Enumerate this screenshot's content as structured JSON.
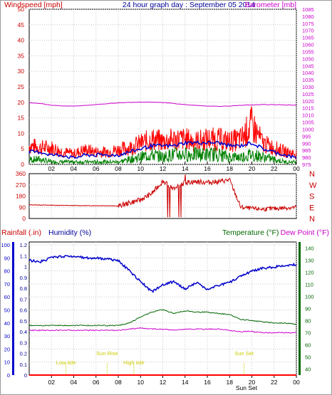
{
  "title": "24 hour graph day : September 05 2014",
  "chart_data": [
    {
      "type": "line",
      "title": "24 hour graph day : September 05 2014",
      "left_axis_label": "Windspeed [mph]",
      "right_axis_label": "Barometer [mb]",
      "x_ticks": [
        "02",
        "04",
        "06",
        "08",
        "10",
        "12",
        "14",
        "16",
        "18",
        "20",
        "22",
        "00"
      ],
      "left_range": [
        0,
        50
      ],
      "left_ticks": [
        "0",
        "5",
        "10",
        "15",
        "20",
        "25",
        "30",
        "35",
        "40",
        "45",
        "50"
      ],
      "right_range": [
        975,
        1085
      ],
      "right_ticks": [
        "975",
        "980",
        "985",
        "990",
        "995",
        "1000",
        "1005",
        "1010",
        "1015",
        "1020",
        "1025",
        "1030",
        "1035",
        "1040",
        "1045",
        "1050",
        "1055",
        "1060",
        "1065",
        "1070",
        "1075",
        "1080",
        "1085"
      ],
      "colors": {
        "gust": "#ff0000",
        "average": "#0000cc",
        "wind_green": "#008000",
        "barometer": "#cc00cc"
      },
      "grid": true,
      "series_hourly": {
        "gust_peak": [
          9,
          8,
          8,
          6,
          5,
          7,
          6,
          6,
          7,
          8,
          10,
          12,
          11,
          12,
          12,
          11,
          12,
          12,
          11,
          12,
          19,
          10,
          8,
          6,
          5
        ],
        "average": [
          4,
          4,
          3,
          3,
          2,
          3,
          3,
          3,
          3,
          4,
          5,
          6,
          6,
          6,
          7,
          7,
          7,
          7,
          6,
          6,
          7,
          5,
          4,
          3,
          2
        ],
        "green": [
          2,
          2,
          1,
          1,
          1,
          1,
          1,
          1,
          1,
          2,
          3,
          4,
          3,
          4,
          4,
          4,
          4,
          4,
          3,
          3,
          4,
          3,
          2,
          1,
          1
        ],
        "barometer": [
          1018.8,
          1018.2,
          1017.0,
          1016.4,
          1016.4,
          1016.8,
          1017.4,
          1018.1,
          1018.6,
          1019.0,
          1019.2,
          1019.2,
          1018.9,
          1018.2,
          1017.4,
          1016.8,
          1016.4,
          1016.2,
          1016.4,
          1016.8,
          1017.2,
          1017.4,
          1017.4,
          1017.2,
          1017.0
        ]
      }
    },
    {
      "type": "line",
      "right_axis_label_letters": [
        "N",
        "W",
        "S",
        "E",
        "N"
      ],
      "left_range": [
        0,
        360
      ],
      "left_ticks": [
        "0",
        "90",
        "180",
        "270",
        "360"
      ],
      "x_ticks": [
        "02",
        "04",
        "06",
        "08",
        "10",
        "12",
        "14",
        "16",
        "18",
        "20",
        "22",
        "00"
      ],
      "colors": {
        "direction": "#cc0000"
      },
      "series_hourly": {
        "direction": [
          110,
          108,
          107,
          105,
          104,
          103,
          103,
          103,
          100,
          125,
          150,
          200,
          300,
          235,
          290,
          295,
          290,
          295,
          310,
          90,
          80,
          75,
          80,
          85,
          90
        ]
      }
    },
    {
      "type": "line",
      "legend_labels": [
        "Rainfall (.in)",
        "Humidity (%)",
        "Temperature (°F)",
        "Dew Point (°F)"
      ],
      "x_ticks": [
        "02",
        "04",
        "06",
        "08",
        "10",
        "12",
        "14",
        "16",
        "18",
        "20",
        "22",
        "00"
      ],
      "bottom_labels": [
        "Sun Set"
      ],
      "humidity_ticks": [
        "0",
        "10",
        "20",
        "30",
        "40",
        "50",
        "60",
        "70",
        "80",
        "90",
        "100"
      ],
      "rain_ticks": [
        "0",
        "0.1",
        "0.2",
        "0.3",
        "0.4",
        "0.5",
        "0.6",
        "0.7",
        "0.8",
        "0.9",
        "1",
        "1.1",
        "1.2"
      ],
      "temp_ticks": [
        "40",
        "50",
        "60",
        "70",
        "80",
        "90",
        "100",
        "110",
        "120",
        "130",
        "140"
      ],
      "humidity_range": [
        0,
        100
      ],
      "rain_range": [
        0,
        1.2
      ],
      "temp_range": [
        35,
        145
      ],
      "colors": {
        "humidity": "#0000cc",
        "temperature": "#006600",
        "dewpoint": "#cc00cc",
        "rain": "#ff0000",
        "rain_axis": "#0000cc",
        "temp_axis": "#006600",
        "annotations": "#cccc00"
      },
      "annotations": [
        {
          "label": "Low tide",
          "hour": 3.3
        },
        {
          "label": "Sun Rise",
          "hour": 7.0
        },
        {
          "label": "High tide",
          "hour": 9.4
        },
        {
          "label": "Sun Set",
          "hour": 19.3
        }
      ],
      "series_hourly": {
        "humidity": [
          88,
          87,
          90,
          91,
          91,
          90,
          90,
          89,
          88,
          80,
          72,
          64,
          69,
          72,
          66,
          71,
          66,
          69,
          71,
          76,
          80,
          82,
          83,
          84,
          85
        ],
        "temperature": [
          76,
          76,
          76,
          76,
          76,
          76,
          76,
          76,
          76,
          78,
          83,
          87,
          89,
          86,
          88,
          87,
          87,
          86,
          85,
          81,
          80,
          79,
          78,
          78,
          77
        ],
        "dewpoint": [
          72,
          72,
          72,
          72,
          72,
          72,
          72,
          72,
          72,
          73,
          74,
          73,
          73,
          72,
          73,
          73,
          73,
          73,
          72,
          71,
          71,
          70,
          70,
          70,
          70
        ],
        "rain": [
          0,
          0,
          0,
          0,
          0,
          0,
          0,
          0,
          0,
          0,
          0,
          0,
          0,
          0,
          0,
          0,
          0,
          0,
          0,
          0,
          0,
          0,
          0,
          0,
          0
        ]
      }
    }
  ]
}
